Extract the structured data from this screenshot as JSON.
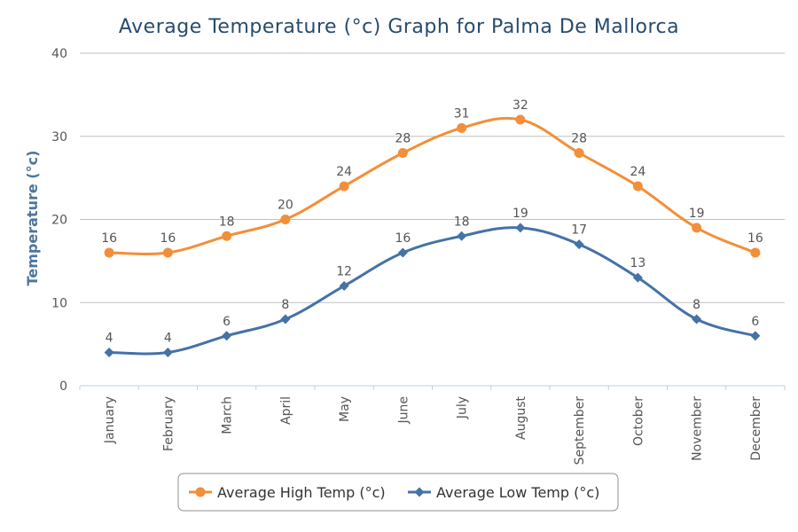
{
  "chart_data": {
    "type": "line",
    "title": "Average Temperature (°c) Graph for Palma De Mallorca",
    "xlabel": "",
    "ylabel": "Temperature (°c)",
    "ylim": [
      0,
      40
    ],
    "yticks": [
      0,
      10,
      20,
      30,
      40
    ],
    "grid": true,
    "legend_position": "bottom",
    "categories": [
      "January",
      "February",
      "March",
      "April",
      "May",
      "June",
      "July",
      "August",
      "September",
      "October",
      "November",
      "December"
    ],
    "series": [
      {
        "name": "Average High Temp (°c)",
        "values": [
          16,
          16,
          18,
          20,
          24,
          28,
          31,
          32,
          28,
          24,
          19,
          16
        ],
        "color": "#f28f38",
        "marker": "circle"
      },
      {
        "name": "Average Low Temp (°c)",
        "values": [
          4,
          4,
          6,
          8,
          12,
          16,
          18,
          19,
          17,
          13,
          8,
          6
        ],
        "color": "#4572a7",
        "marker": "diamond"
      }
    ]
  }
}
